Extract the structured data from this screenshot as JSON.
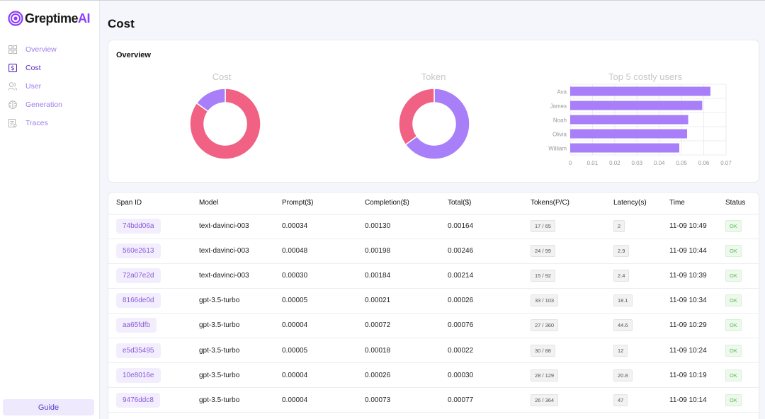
{
  "brand": {
    "name_main": "Greptime",
    "name_accent": "AI",
    "accent_color": "#8b3dff"
  },
  "sidebar": {
    "items": [
      {
        "label": "Overview",
        "icon": "grid-icon",
        "active": false
      },
      {
        "label": "Cost",
        "icon": "dollar-icon",
        "active": true
      },
      {
        "label": "User",
        "icon": "user-icon",
        "active": false
      },
      {
        "label": "Generation",
        "icon": "brain-icon",
        "active": false
      },
      {
        "label": "Traces",
        "icon": "document-icon",
        "active": false
      }
    ],
    "guide_label": "Guide"
  },
  "page": {
    "title": "Cost"
  },
  "overview": {
    "title": "Overview"
  },
  "colors": {
    "pink": "#f06183",
    "purple": "#a87ff8",
    "bar": "#a87ff8"
  },
  "chart_data": [
    {
      "type": "pie",
      "title": "Cost",
      "slices": [
        {
          "value": 85,
          "color": "#f06183"
        },
        {
          "value": 15,
          "color": "#a87ff8"
        }
      ]
    },
    {
      "type": "pie",
      "title": "Token",
      "slices": [
        {
          "value": 65,
          "color": "#a87ff8"
        },
        {
          "value": 35,
          "color": "#f06183"
        }
      ]
    },
    {
      "type": "bar",
      "orientation": "horizontal",
      "title": "Top 5 costly users",
      "categories": [
        "Ava",
        "James",
        "Noah",
        "Olivia",
        "William"
      ],
      "values": [
        0.063,
        0.0593,
        0.053,
        0.0525,
        0.049
      ],
      "xlim": [
        0,
        0.07
      ],
      "xticks": [
        "0",
        "0.01",
        "0.02",
        "0.03",
        "0.04",
        "0.05",
        "0.06",
        "0.07"
      ],
      "grid": true
    }
  ],
  "table": {
    "headers": [
      "Span ID",
      "Model",
      "Prompt($)",
      "Completion($)",
      "Total($)",
      "Tokens(P/C)",
      "Latency(s)",
      "Time",
      "Status"
    ],
    "rows": [
      {
        "span_id": "74bdd06a",
        "model": "text-davinci-003",
        "prompt": "0.00034",
        "completion": "0.00130",
        "total": "0.00164",
        "tokens": "17 / 65",
        "latency": "2",
        "time": "11-09 10:49",
        "status": "OK"
      },
      {
        "span_id": "560e2613",
        "model": "text-davinci-003",
        "prompt": "0.00048",
        "completion": "0.00198",
        "total": "0.00246",
        "tokens": "24 / 99",
        "latency": "2.9",
        "time": "11-09 10:44",
        "status": "OK"
      },
      {
        "span_id": "72a07e2d",
        "model": "text-davinci-003",
        "prompt": "0.00030",
        "completion": "0.00184",
        "total": "0.00214",
        "tokens": "15 / 92",
        "latency": "2.4",
        "time": "11-09 10:39",
        "status": "OK"
      },
      {
        "span_id": "8166de0d",
        "model": "gpt-3.5-turbo",
        "prompt": "0.00005",
        "completion": "0.00021",
        "total": "0.00026",
        "tokens": "33 / 103",
        "latency": "18.1",
        "time": "11-09 10:34",
        "status": "OK"
      },
      {
        "span_id": "aa65fdfb",
        "model": "gpt-3.5-turbo",
        "prompt": "0.00004",
        "completion": "0.00072",
        "total": "0.00076",
        "tokens": "27 / 360",
        "latency": "44.6",
        "time": "11-09 10:29",
        "status": "OK"
      },
      {
        "span_id": "e5d35495",
        "model": "gpt-3.5-turbo",
        "prompt": "0.00005",
        "completion": "0.00018",
        "total": "0.00022",
        "tokens": "30 / 88",
        "latency": "12",
        "time": "11-09 10:24",
        "status": "OK"
      },
      {
        "span_id": "10e8016e",
        "model": "gpt-3.5-turbo",
        "prompt": "0.00004",
        "completion": "0.00026",
        "total": "0.00030",
        "tokens": "28 / 129",
        "latency": "20.8",
        "time": "11-09 10:19",
        "status": "OK"
      },
      {
        "span_id": "9476ddc8",
        "model": "gpt-3.5-turbo",
        "prompt": "0.00004",
        "completion": "0.00073",
        "total": "0.00077",
        "tokens": "26 / 364",
        "latency": "47",
        "time": "11-09 10:14",
        "status": "OK"
      }
    ]
  }
}
